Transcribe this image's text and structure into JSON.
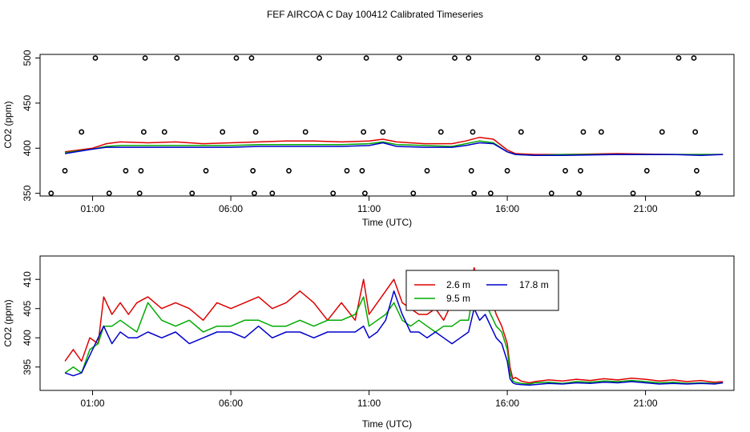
{
  "page_title": "FEF AIRCOA C  Day 100412  Calibrated Timeseries",
  "colors": {
    "s1": "#dd0000",
    "s2": "#00aa00",
    "s3": "#0000cc",
    "axis": "#000000"
  },
  "chart_data": [
    {
      "type": "line",
      "xlabel": "Time (UTC)",
      "ylabel": "CO2 (ppm)",
      "xlim": [
        -0.9,
        24.2
      ],
      "ylim": [
        347,
        504
      ],
      "x_ticks": [
        1,
        6,
        11,
        16,
        21
      ],
      "x_tick_labels": [
        "01:00",
        "06:00",
        "11:00",
        "16:00",
        "21:00"
      ],
      "y_ticks": [
        350,
        400,
        450,
        500
      ],
      "y_tick_labels": [
        "350",
        "400",
        "450",
        "500"
      ],
      "grid": false,
      "series": [
        {
          "color": "#dd0000",
          "x": [
            0,
            1,
            1.5,
            2,
            3,
            4,
            5,
            6,
            7,
            8,
            9,
            10,
            11,
            11.5,
            12,
            13,
            14,
            14.5,
            15,
            15.5,
            16,
            16.3,
            17,
            18,
            20,
            22,
            23,
            23.8
          ],
          "y": [
            396,
            400,
            405,
            407,
            406,
            407,
            405,
            406,
            407,
            408,
            408,
            407,
            408,
            410,
            407,
            405,
            405,
            408,
            412,
            410,
            398,
            394,
            393,
            393,
            394,
            393,
            393,
            393
          ]
        },
        {
          "color": "#00aa00",
          "x": [
            0,
            1,
            1.5,
            2,
            3,
            4,
            5,
            6,
            7,
            8,
            9,
            10,
            11,
            11.5,
            12,
            13,
            14,
            14.5,
            15,
            15.5,
            16,
            16.3,
            17,
            18,
            20,
            22,
            23,
            23.8
          ],
          "y": [
            395,
            399,
            402,
            403,
            403,
            403,
            403,
            403,
            404,
            404,
            404,
            404,
            405,
            407,
            404,
            403,
            402,
            405,
            408,
            406,
            396,
            393,
            392,
            393,
            393,
            393,
            393,
            393
          ]
        },
        {
          "color": "#0000cc",
          "x": [
            0,
            1,
            1.5,
            2,
            3,
            4,
            5,
            6,
            7,
            8,
            9,
            10,
            11,
            11.5,
            12,
            13,
            14,
            14.5,
            15,
            15.5,
            16,
            16.3,
            17,
            18,
            20,
            22,
            23,
            23.8
          ],
          "y": [
            394,
            399,
            401,
            401,
            401,
            401,
            401,
            401,
            402,
            402,
            402,
            402,
            403,
            406,
            402,
            401,
            401,
            403,
            406,
            405,
            396,
            393,
            392,
            392,
            393,
            393,
            392,
            393
          ]
        }
      ],
      "calibration_points": [
        {
          "x": -0.5,
          "y": 350
        },
        {
          "x": 0,
          "y": 375
        },
        {
          "x": 0.6,
          "y": 418
        },
        {
          "x": 1.1,
          "y": 500
        },
        {
          "x": 1.6,
          "y": 350
        },
        {
          "x": 2.2,
          "y": 375
        },
        {
          "x": 2.7,
          "y": 350
        },
        {
          "x": 2.75,
          "y": 375
        },
        {
          "x": 2.85,
          "y": 418
        },
        {
          "x": 2.9,
          "y": 500
        },
        {
          "x": 3.6,
          "y": 418
        },
        {
          "x": 4.05,
          "y": 500
        },
        {
          "x": 4.6,
          "y": 350
        },
        {
          "x": 5.1,
          "y": 375
        },
        {
          "x": 5.7,
          "y": 418
        },
        {
          "x": 6.2,
          "y": 500
        },
        {
          "x": 6.75,
          "y": 500
        },
        {
          "x": 6.8,
          "y": 375
        },
        {
          "x": 6.85,
          "y": 350
        },
        {
          "x": 6.9,
          "y": 418
        },
        {
          "x": 7.5,
          "y": 350
        },
        {
          "x": 8.1,
          "y": 375
        },
        {
          "x": 8.7,
          "y": 418
        },
        {
          "x": 9.2,
          "y": 500
        },
        {
          "x": 9.7,
          "y": 350
        },
        {
          "x": 10.2,
          "y": 375
        },
        {
          "x": 10.75,
          "y": 375
        },
        {
          "x": 10.8,
          "y": 418
        },
        {
          "x": 10.85,
          "y": 350
        },
        {
          "x": 10.9,
          "y": 500
        },
        {
          "x": 11.5,
          "y": 418
        },
        {
          "x": 12.1,
          "y": 500
        },
        {
          "x": 12.6,
          "y": 350
        },
        {
          "x": 13.1,
          "y": 375
        },
        {
          "x": 13.6,
          "y": 418
        },
        {
          "x": 14.1,
          "y": 500
        },
        {
          "x": 14.6,
          "y": 500
        },
        {
          "x": 14.7,
          "y": 375
        },
        {
          "x": 14.75,
          "y": 418
        },
        {
          "x": 14.8,
          "y": 350
        },
        {
          "x": 15.4,
          "y": 350
        },
        {
          "x": 16.0,
          "y": 375
        },
        {
          "x": 16.5,
          "y": 418
        },
        {
          "x": 17.1,
          "y": 500
        },
        {
          "x": 17.6,
          "y": 350
        },
        {
          "x": 18.1,
          "y": 375
        },
        {
          "x": 18.6,
          "y": 350
        },
        {
          "x": 18.65,
          "y": 375
        },
        {
          "x": 18.75,
          "y": 418
        },
        {
          "x": 18.8,
          "y": 500
        },
        {
          "x": 19.4,
          "y": 418
        },
        {
          "x": 20.0,
          "y": 500
        },
        {
          "x": 20.55,
          "y": 350
        },
        {
          "x": 21.05,
          "y": 375
        },
        {
          "x": 21.6,
          "y": 418
        },
        {
          "x": 22.2,
          "y": 500
        },
        {
          "x": 22.75,
          "y": 500
        },
        {
          "x": 22.8,
          "y": 418
        },
        {
          "x": 22.85,
          "y": 375
        },
        {
          "x": 22.9,
          "y": 350
        }
      ]
    },
    {
      "type": "line",
      "xlabel": "Time (UTC)",
      "ylabel": "CO2 (ppm)",
      "xlim": [
        -0.9,
        24.2
      ],
      "ylim": [
        391,
        414
      ],
      "x_ticks": [
        1,
        6,
        11,
        16,
        21
      ],
      "x_tick_labels": [
        "01:00",
        "06:00",
        "11:00",
        "16:00",
        "21:00"
      ],
      "y_ticks": [
        395,
        400,
        405,
        410
      ],
      "y_tick_labels": [
        "395",
        "400",
        "405",
        "410"
      ],
      "grid": false,
      "legend": {
        "position": "top-right"
      },
      "series": [
        {
          "name": "2.6 m",
          "color": "#dd0000",
          "x": [
            0,
            0.3,
            0.6,
            0.9,
            1.2,
            1.4,
            1.7,
            2,
            2.3,
            2.6,
            3,
            3.5,
            4,
            4.5,
            5,
            5.5,
            6,
            6.5,
            7,
            7.5,
            8,
            8.5,
            9,
            9.5,
            10,
            10.5,
            10.8,
            11,
            11.3,
            11.6,
            11.9,
            12.2,
            12.5,
            12.8,
            13.1,
            13.4,
            13.7,
            14,
            14.3,
            14.6,
            14.8,
            15,
            15.2,
            15.4,
            15.6,
            15.8,
            16,
            16.1,
            16.2,
            16.3,
            16.5,
            16.8,
            17,
            17.5,
            18,
            18.5,
            19,
            19.5,
            20,
            20.5,
            21,
            21.5,
            22,
            22.5,
            23,
            23.5,
            23.8
          ],
          "y": [
            396,
            398,
            396,
            400,
            399,
            407,
            404,
            406,
            404,
            406,
            407,
            405,
            406,
            405,
            403,
            406,
            405,
            406,
            407,
            405,
            406,
            408,
            406,
            403,
            406,
            403,
            410,
            404,
            406,
            408,
            410,
            406,
            405,
            404,
            404,
            405,
            403,
            406,
            405,
            406,
            412,
            409,
            410,
            407,
            404,
            402,
            399,
            395,
            393,
            393.2,
            392.6,
            392.3,
            392.5,
            392.8,
            392.6,
            392.9,
            392.7,
            393,
            392.8,
            393.1,
            392.9,
            392.6,
            392.8,
            392.5,
            392.7,
            392.4,
            392.5
          ]
        },
        {
          "name": "9.5 m",
          "color": "#00aa00",
          "x": [
            0,
            0.3,
            0.6,
            0.9,
            1.2,
            1.4,
            1.7,
            2,
            2.3,
            2.6,
            3,
            3.5,
            4,
            4.5,
            5,
            5.5,
            6,
            6.5,
            7,
            7.5,
            8,
            8.5,
            9,
            9.5,
            10,
            10.5,
            10.8,
            11,
            11.3,
            11.6,
            11.9,
            12.2,
            12.5,
            12.8,
            13.1,
            13.4,
            13.7,
            14,
            14.3,
            14.6,
            14.8,
            15,
            15.2,
            15.4,
            15.6,
            15.8,
            16,
            16.1,
            16.2,
            16.3,
            16.5,
            16.8,
            17,
            17.5,
            18,
            18.5,
            19,
            19.5,
            20,
            20.5,
            21,
            21.5,
            22,
            22.5,
            23,
            23.5,
            23.8
          ],
          "y": [
            394,
            395,
            394,
            398,
            399,
            402,
            402,
            403,
            402,
            401,
            406,
            403,
            402,
            403,
            401,
            402,
            402,
            403,
            403,
            402,
            402,
            403,
            402,
            403,
            403,
            404,
            407,
            402,
            403,
            404,
            406,
            403,
            402,
            403,
            402,
            401,
            402,
            402,
            403,
            403,
            409,
            405,
            406,
            404,
            402,
            401,
            398,
            394,
            392.6,
            392.4,
            392.2,
            392.1,
            392.3,
            392.4,
            392.2,
            392.5,
            392.4,
            392.6,
            392.5,
            392.7,
            392.5,
            392.3,
            392.4,
            392.2,
            392.3,
            392.2,
            392.3
          ]
        },
        {
          "name": "17.8 m",
          "color": "#0000cc",
          "x": [
            0,
            0.3,
            0.6,
            0.9,
            1.2,
            1.4,
            1.7,
            2,
            2.3,
            2.6,
            3,
            3.5,
            4,
            4.5,
            5,
            5.5,
            6,
            6.5,
            7,
            7.5,
            8,
            8.5,
            9,
            9.5,
            10,
            10.5,
            10.8,
            11,
            11.3,
            11.6,
            11.9,
            12.2,
            12.5,
            12.8,
            13.1,
            13.4,
            13.7,
            14,
            14.3,
            14.6,
            14.8,
            15,
            15.2,
            15.4,
            15.6,
            15.8,
            16,
            16.1,
            16.2,
            16.3,
            16.5,
            16.8,
            17,
            17.5,
            18,
            18.5,
            19,
            19.5,
            20,
            20.5,
            21,
            21.5,
            22,
            22.5,
            23,
            23.5,
            23.8
          ],
          "y": [
            394,
            393.5,
            394,
            397,
            400,
            402,
            399,
            401,
            400,
            400,
            401,
            400,
            401,
            399,
            400,
            401,
            401,
            400,
            402,
            400,
            401,
            401,
            400,
            401,
            401,
            401,
            402,
            400,
            401,
            403,
            408,
            404,
            401,
            401,
            400,
            401,
            400,
            399,
            400,
            401,
            405,
            403,
            404,
            402,
            400,
            399,
            396,
            393,
            392.3,
            392.1,
            392,
            391.9,
            392,
            392.2,
            392.1,
            392.3,
            392.2,
            392.4,
            392.3,
            392.5,
            392.3,
            392.1,
            392.2,
            392.1,
            392.2,
            392.1,
            392.3
          ]
        }
      ]
    }
  ]
}
